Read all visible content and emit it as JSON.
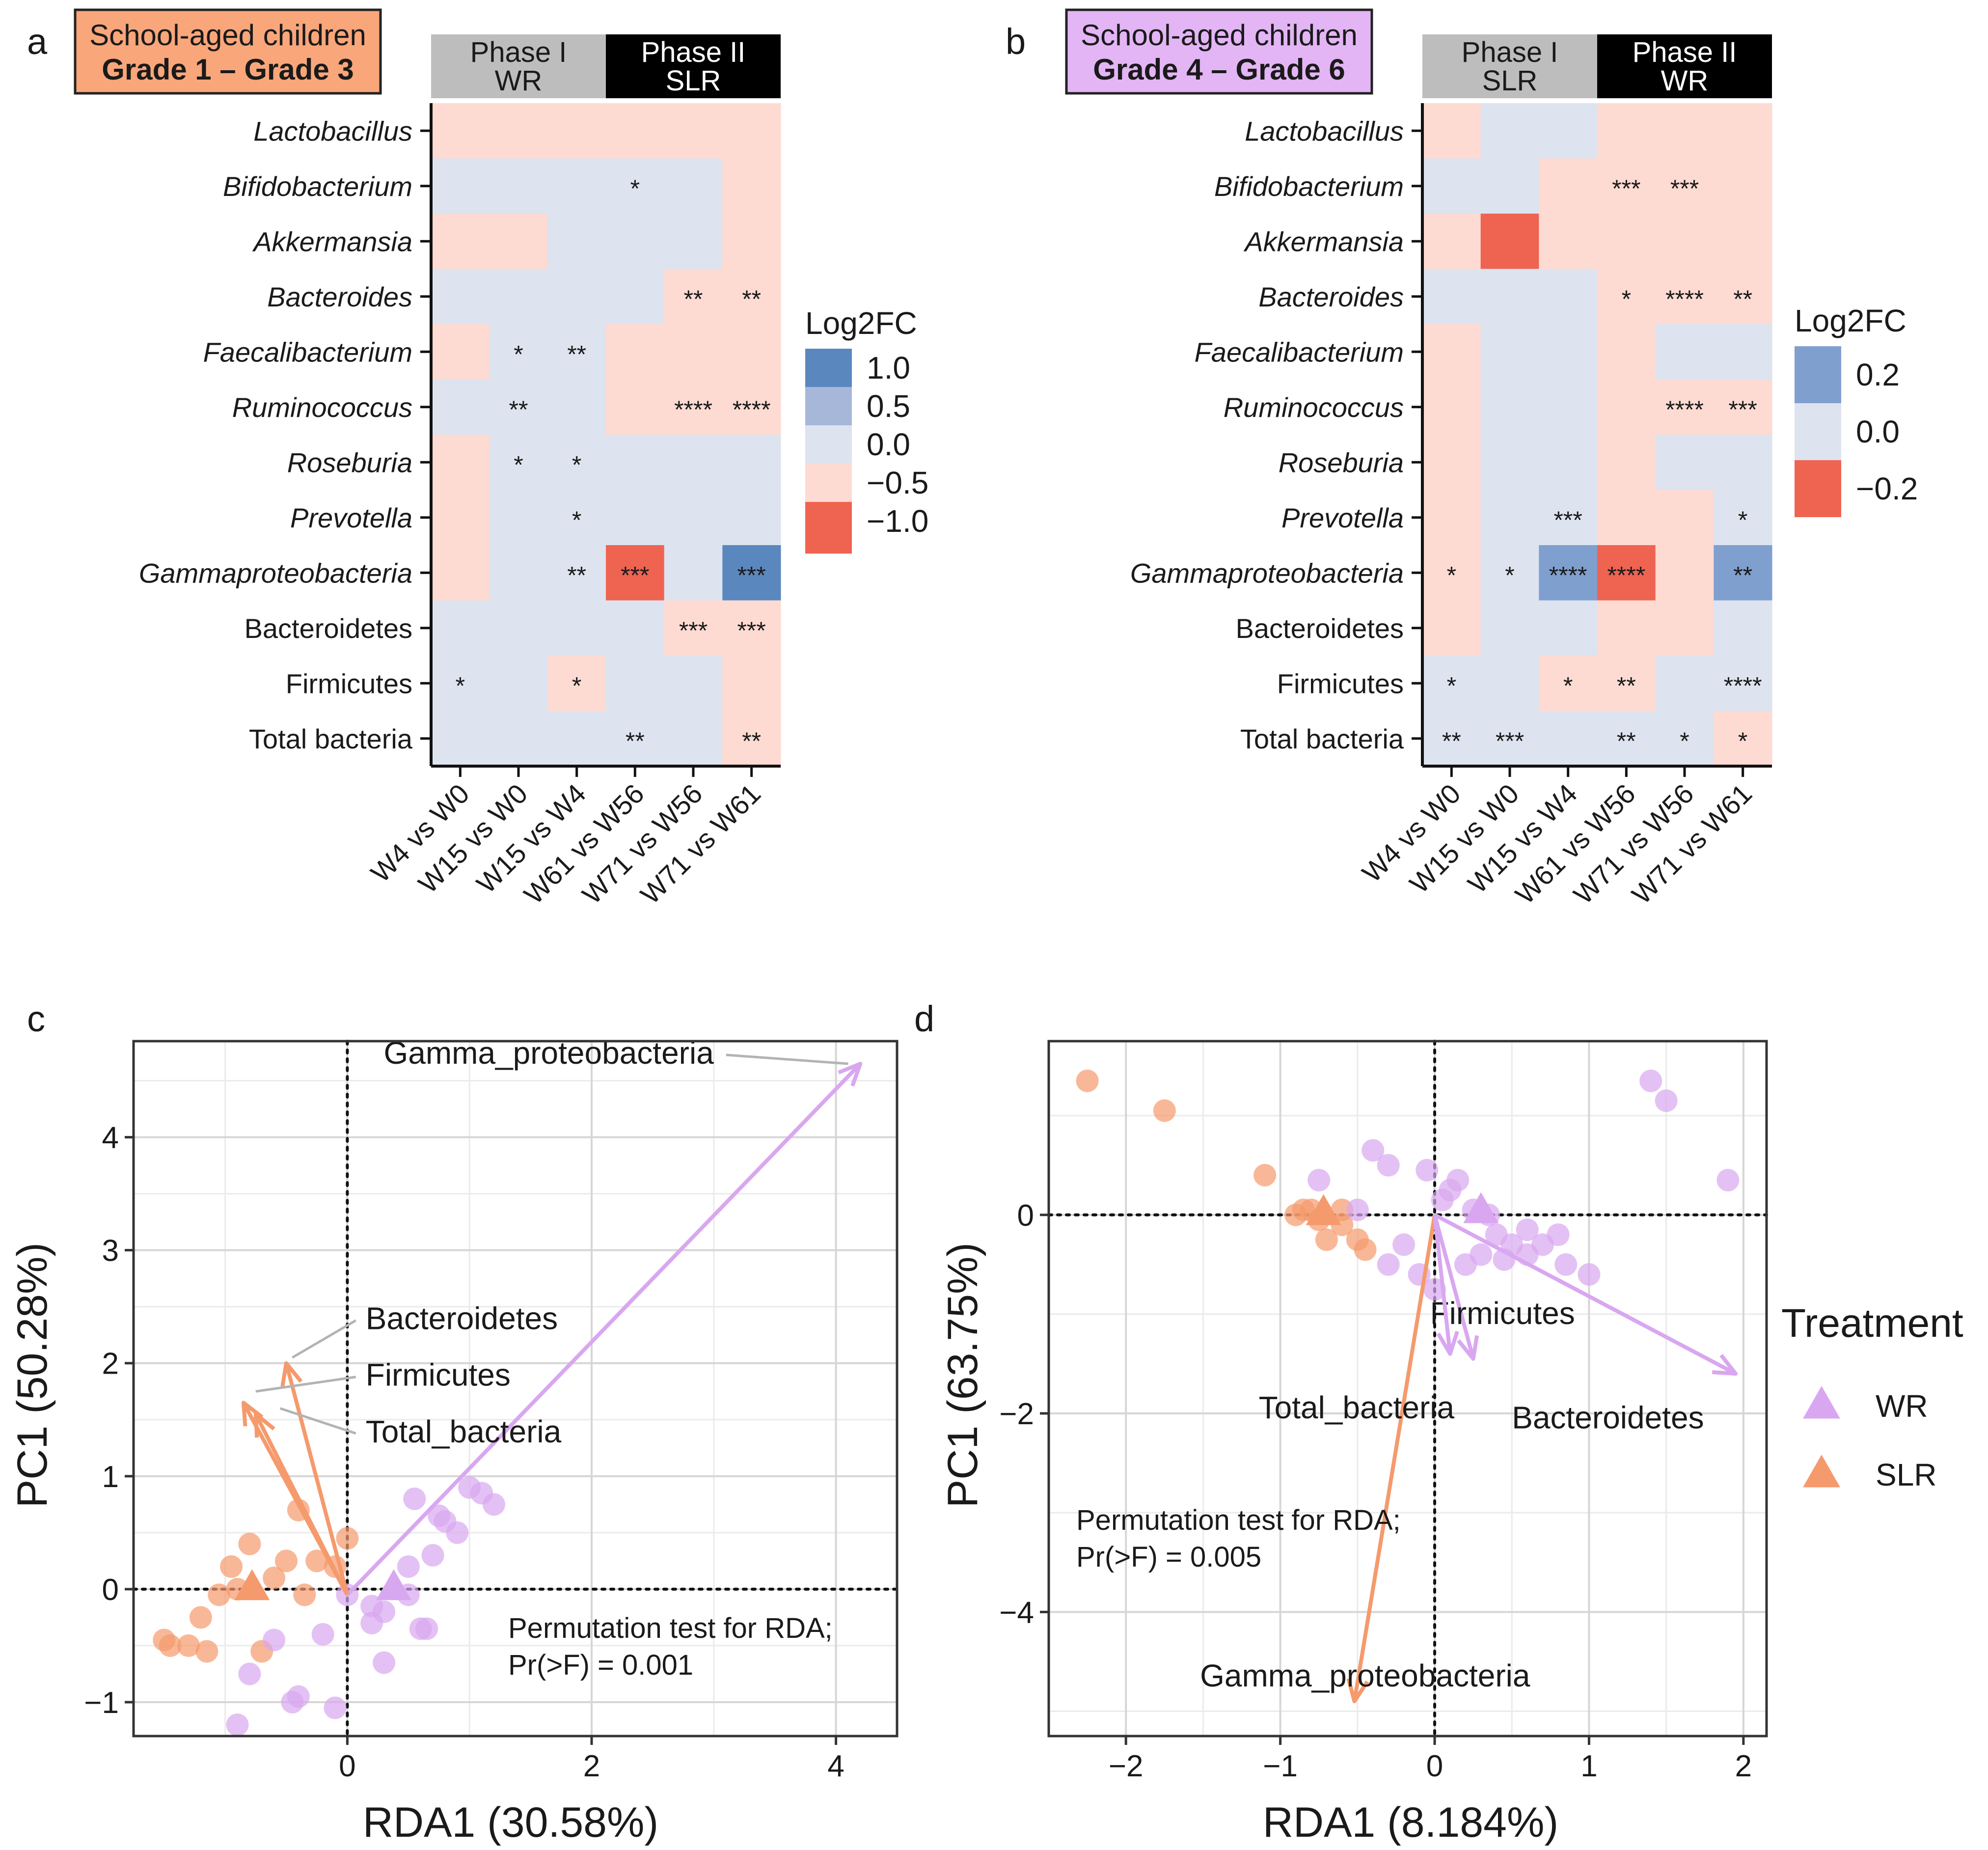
{
  "colors": {
    "wr": "#d9a7f0",
    "slr": "#f59a6c",
    "orange_box": "#f8a67a",
    "purple_box": "#e3b5f5",
    "phase_gray": "#bdbdbd",
    "phase_black": "#000000",
    "scale": [
      "#ef6351",
      "#f9a08f",
      "#fddbd3",
      "#dde3ef",
      "#a7b7d9",
      "#5b87bf"
    ]
  },
  "chart_data": [
    {
      "type": "heatmap",
      "panel": "a",
      "tag_line1": "School-aged children",
      "tag_line2": "Grade 1 – Grade 3",
      "phases": [
        {
          "label1": "Phase I",
          "label2": "WR",
          "cols": 3,
          "style": "gray"
        },
        {
          "label1": "Phase II",
          "label2": "SLR",
          "cols": 3,
          "style": "black"
        }
      ],
      "rows": [
        {
          "label": "Lactobacillus",
          "italic": true
        },
        {
          "label": "Bifidobacterium",
          "italic": true
        },
        {
          "label": "Akkermansia",
          "italic": true
        },
        {
          "label": "Bacteroides",
          "italic": true
        },
        {
          "label": "Faecalibacterium",
          "italic": true
        },
        {
          "label": "Ruminococcus",
          "italic": true
        },
        {
          "label": "Roseburia",
          "italic": true
        },
        {
          "label": "Prevotella",
          "italic": true
        },
        {
          "label": "Gammaproteobacteria",
          "italic": true
        },
        {
          "label": "Bacteroidetes",
          "italic": false
        },
        {
          "label": "Firmicutes",
          "italic": false
        },
        {
          "label": "Total bacteria",
          "italic": false
        }
      ],
      "columns": [
        "W4 vs W0",
        "W15 vs W0",
        "W15 vs W4",
        "W61 vs W56",
        "W71 vs W56",
        "W71 vs W61"
      ],
      "values": [
        [
          -0.3,
          -0.3,
          -0.3,
          -0.3,
          -0.3,
          -0.3
        ],
        [
          0.1,
          0.1,
          0.1,
          0.1,
          0.1,
          -0.3
        ],
        [
          -0.3,
          -0.3,
          0.1,
          0.1,
          0.1,
          -0.3
        ],
        [
          0.1,
          0.1,
          0.1,
          0.1,
          -0.3,
          -0.3
        ],
        [
          -0.3,
          0.1,
          0.1,
          -0.3,
          -0.3,
          -0.3
        ],
        [
          0.1,
          0.1,
          0.1,
          -0.3,
          -0.3,
          -0.3
        ],
        [
          -0.3,
          0.1,
          0.1,
          0.1,
          0.1,
          0.1
        ],
        [
          -0.3,
          0.1,
          0.1,
          0.1,
          0.1,
          0.1
        ],
        [
          -0.3,
          0.1,
          0.1,
          -1.2,
          0.1,
          1.2
        ],
        [
          0.1,
          0.1,
          0.1,
          0.1,
          -0.3,
          -0.3
        ],
        [
          0.1,
          0.1,
          -0.3,
          0.1,
          0.1,
          -0.3
        ],
        [
          0.1,
          0.1,
          0.1,
          0.1,
          0.1,
          -0.3
        ]
      ],
      "stars": [
        [
          "",
          "",
          "",
          "",
          "",
          ""
        ],
        [
          "",
          "",
          "",
          "*",
          "",
          ""
        ],
        [
          "",
          "",
          "",
          "",
          "",
          ""
        ],
        [
          "",
          "",
          "",
          "",
          "**",
          "**"
        ],
        [
          "",
          "*",
          "**",
          "",
          "",
          ""
        ],
        [
          "",
          "**",
          "",
          "",
          "****",
          "****"
        ],
        [
          "",
          "*",
          "*",
          "",
          "",
          ""
        ],
        [
          "",
          "",
          "*",
          "",
          "",
          ""
        ],
        [
          "",
          "",
          "**",
          "***",
          "",
          "***"
        ],
        [
          "",
          "",
          "",
          "",
          "***",
          "***"
        ],
        [
          "*",
          "",
          "*",
          "",
          "",
          ""
        ],
        [
          "",
          "",
          "",
          "**",
          "",
          "**"
        ]
      ],
      "legend": {
        "title": "Log2FC",
        "labels": [
          "1.0",
          "0.5",
          "0.0",
          "−0.5",
          "−1.0"
        ],
        "levels": [
          1.0,
          0.5,
          0.0,
          -0.5,
          -1.0
        ]
      }
    },
    {
      "type": "heatmap",
      "panel": "b",
      "tag_line1": "School-aged children",
      "tag_line2": "Grade 4 – Grade 6",
      "phases": [
        {
          "label1": "Phase I",
          "label2": "SLR",
          "cols": 3,
          "style": "gray"
        },
        {
          "label1": "Phase II",
          "label2": "WR",
          "cols": 3,
          "style": "black"
        }
      ],
      "rows": [
        {
          "label": "Lactobacillus",
          "italic": true
        },
        {
          "label": "Bifidobacterium",
          "italic": true
        },
        {
          "label": "Akkermansia",
          "italic": true
        },
        {
          "label": "Bacteroides",
          "italic": true
        },
        {
          "label": "Faecalibacterium",
          "italic": true
        },
        {
          "label": "Ruminococcus",
          "italic": true
        },
        {
          "label": "Roseburia",
          "italic": true
        },
        {
          "label": "Prevotella",
          "italic": true
        },
        {
          "label": "Gammaproteobacteria",
          "italic": true
        },
        {
          "label": "Bacteroidetes",
          "italic": false
        },
        {
          "label": "Firmicutes",
          "italic": false
        },
        {
          "label": "Total bacteria",
          "italic": false
        }
      ],
      "columns": [
        "W4 vs W0",
        "W15 vs W0",
        "W15 vs W4",
        "W61 vs W56",
        "W71 vs W56",
        "W71 vs W61"
      ],
      "values": [
        [
          -0.1,
          0.05,
          0.05,
          -0.1,
          -0.1,
          -0.1
        ],
        [
          0.05,
          0.05,
          -0.1,
          -0.1,
          -0.1,
          -0.1
        ],
        [
          -0.1,
          -0.3,
          -0.1,
          -0.1,
          -0.1,
          -0.1
        ],
        [
          0.05,
          0.05,
          0.05,
          -0.1,
          -0.1,
          -0.1
        ],
        [
          -0.1,
          0.05,
          0.05,
          -0.1,
          0.05,
          0.05
        ],
        [
          -0.1,
          0.05,
          0.05,
          -0.1,
          -0.1,
          -0.1
        ],
        [
          -0.1,
          0.05,
          0.05,
          -0.1,
          0.05,
          0.05
        ],
        [
          -0.1,
          0.05,
          0.05,
          -0.1,
          -0.1,
          0.05
        ],
        [
          -0.1,
          0.05,
          0.25,
          -0.3,
          -0.1,
          0.25
        ],
        [
          -0.1,
          0.05,
          0.05,
          -0.1,
          -0.1,
          0.05
        ],
        [
          0.05,
          0.05,
          -0.1,
          -0.1,
          0.05,
          0.05
        ],
        [
          0.05,
          0.05,
          0.05,
          0.05,
          0.05,
          -0.1
        ]
      ],
      "stars": [
        [
          "",
          "",
          "",
          "",
          "",
          ""
        ],
        [
          "",
          "",
          "",
          "***",
          "***",
          ""
        ],
        [
          "",
          "",
          "",
          "",
          "",
          ""
        ],
        [
          "",
          "",
          "",
          "*",
          "****",
          "**"
        ],
        [
          "",
          "",
          "",
          "",
          "",
          ""
        ],
        [
          "",
          "",
          "",
          "",
          "****",
          "***"
        ],
        [
          "",
          "",
          "",
          "",
          "",
          ""
        ],
        [
          "",
          "",
          "***",
          "",
          "",
          "*"
        ],
        [
          "*",
          "*",
          "****",
          "****",
          "",
          "**"
        ],
        [
          "",
          "",
          "",
          "",
          "",
          ""
        ],
        [
          "*",
          "",
          "*",
          "**",
          "",
          "****"
        ],
        [
          "**",
          "***",
          "",
          "**",
          "*",
          "*"
        ]
      ],
      "legend": {
        "title": "Log2FC",
        "labels": [
          "0.2",
          "0.0",
          "−0.2"
        ],
        "levels": [
          0.2,
          0.0,
          -0.2
        ]
      }
    },
    {
      "type": "scatter",
      "panel": "c",
      "xlabel": "RDA1 (30.58%)",
      "ylabel": "PC1 (50.28%)",
      "xlim": [
        -1.75,
        4.5
      ],
      "ylim": [
        -1.3,
        4.85
      ],
      "xticks": [
        0,
        2,
        4
      ],
      "xticklabels": [
        "0",
        "2",
        "4"
      ],
      "yticks": [
        -1,
        0,
        1,
        2,
        3,
        4
      ],
      "yticklabels": [
        "−1",
        "0",
        "1",
        "2",
        "3",
        "4"
      ],
      "annotation_line1": "Permutation test for RDA;",
      "annotation_line2": "Pr(>F) = 0.001",
      "wr_points": [
        [
          0.0,
          -0.05
        ],
        [
          0.2,
          -0.15
        ],
        [
          0.5,
          -0.05
        ],
        [
          0.7,
          0.3
        ],
        [
          0.9,
          0.5
        ],
        [
          1.0,
          0.9
        ],
        [
          1.1,
          0.85
        ],
        [
          1.2,
          0.75
        ],
        [
          0.8,
          0.6
        ],
        [
          0.5,
          0.2
        ],
        [
          0.3,
          -0.2
        ],
        [
          0.6,
          -0.35
        ],
        [
          0.2,
          -0.3
        ],
        [
          -0.2,
          -0.4
        ],
        [
          -0.6,
          -0.45
        ],
        [
          -0.8,
          -0.75
        ],
        [
          -0.4,
          -0.95
        ],
        [
          -0.9,
          -1.2
        ],
        [
          -0.1,
          -1.05
        ],
        [
          0.3,
          -0.65
        ],
        [
          0.65,
          -0.35
        ],
        [
          -0.45,
          -1.0
        ],
        [
          0.55,
          0.8
        ],
        [
          0.75,
          0.65
        ]
      ],
      "slr_points": [
        [
          -1.5,
          -0.45
        ],
        [
          -1.45,
          -0.5
        ],
        [
          -1.3,
          -0.5
        ],
        [
          -1.2,
          -0.25
        ],
        [
          -1.05,
          -0.05
        ],
        [
          -0.9,
          0.0
        ],
        [
          -0.8,
          0.4
        ],
        [
          -0.6,
          0.1
        ],
        [
          -0.4,
          0.7
        ],
        [
          -0.35,
          -0.05
        ],
        [
          -0.25,
          0.25
        ],
        [
          -0.1,
          0.2
        ],
        [
          0.0,
          0.45
        ],
        [
          -0.5,
          0.25
        ],
        [
          -1.15,
          -0.55
        ],
        [
          -0.7,
          -0.55
        ],
        [
          -0.95,
          0.2
        ]
      ],
      "wr_centroid": [
        0.38,
        0.02
      ],
      "slr_centroid": [
        -0.78,
        0.02
      ],
      "arrows": [
        {
          "label": "Gamma_proteobacteria",
          "color": "wr",
          "from": [
            0.0,
            -0.05
          ],
          "to": [
            4.2,
            4.65
          ],
          "text_at": [
            3.0,
            4.65
          ],
          "text_anchor": "end",
          "leader_to": [
            4.1,
            4.65
          ]
        },
        {
          "label": "Bacteroidetes",
          "color": "slr",
          "from": [
            0.0,
            -0.05
          ],
          "to": [
            -0.5,
            2.0
          ],
          "text_at": [
            0.15,
            2.3
          ],
          "text_anchor": "start",
          "leader_to": [
            -0.45,
            2.05
          ]
        },
        {
          "label": "Firmicutes",
          "color": "slr",
          "from": [
            0.0,
            -0.05
          ],
          "to": [
            -0.85,
            1.65
          ],
          "text_at": [
            0.15,
            1.8
          ],
          "text_anchor": "start",
          "leader_to": [
            -0.75,
            1.75
          ]
        },
        {
          "label": "Total_bacteria",
          "color": "slr",
          "from": [
            0.0,
            -0.05
          ],
          "to": [
            -0.75,
            1.55
          ],
          "text_at": [
            0.15,
            1.3
          ],
          "text_anchor": "start",
          "leader_to": [
            -0.55,
            1.6
          ]
        }
      ]
    },
    {
      "type": "scatter",
      "panel": "d",
      "xlabel": "RDA1 (8.184%)",
      "ylabel": "PC1 (63.75%)",
      "xlim": [
        -2.5,
        2.15
      ],
      "ylim": [
        -5.25,
        1.75
      ],
      "xticks": [
        -2,
        -1,
        0,
        1,
        2
      ],
      "xticklabels": [
        "−2",
        "−1",
        "0",
        "1",
        "2"
      ],
      "yticks": [
        -4,
        -2,
        0
      ],
      "yticklabels": [
        "−4",
        "−2",
        "0"
      ],
      "annotation_line1": "Permutation test for RDA;",
      "annotation_line2": "Pr(>F) = 0.005",
      "wr_points": [
        [
          -0.4,
          0.65
        ],
        [
          -0.3,
          0.5
        ],
        [
          -0.05,
          0.45
        ],
        [
          0.05,
          0.15
        ],
        [
          0.15,
          0.35
        ],
        [
          0.25,
          0.05
        ],
        [
          0.35,
          0.0
        ],
        [
          0.4,
          -0.2
        ],
        [
          0.5,
          -0.3
        ],
        [
          0.6,
          -0.4
        ],
        [
          0.7,
          -0.3
        ],
        [
          0.8,
          -0.2
        ],
        [
          0.85,
          -0.5
        ],
        [
          1.0,
          -0.6
        ],
        [
          0.3,
          -0.4
        ],
        [
          0.2,
          -0.5
        ],
        [
          -0.2,
          -0.3
        ],
        [
          -0.3,
          -0.5
        ],
        [
          -0.1,
          -0.6
        ],
        [
          0.0,
          -0.75
        ],
        [
          0.1,
          0.25
        ],
        [
          -0.5,
          0.05
        ],
        [
          -0.75,
          0.35
        ],
        [
          1.4,
          1.35
        ],
        [
          1.5,
          1.15
        ],
        [
          1.9,
          0.35
        ],
        [
          0.6,
          -0.15
        ],
        [
          0.45,
          -0.45
        ]
      ],
      "slr_points": [
        [
          -2.25,
          1.35
        ],
        [
          -1.75,
          1.05
        ],
        [
          -1.1,
          0.4
        ],
        [
          -0.85,
          0.05
        ],
        [
          -0.75,
          -0.05
        ],
        [
          -0.7,
          -0.25
        ],
        [
          -0.6,
          -0.1
        ],
        [
          -0.5,
          -0.25
        ],
        [
          -0.45,
          -0.35
        ],
        [
          -0.6,
          0.05
        ],
        [
          -0.8,
          0.05
        ],
        [
          -0.9,
          0.0
        ]
      ],
      "wr_centroid": [
        0.3,
        0.05
      ],
      "slr_centroid": [
        -0.72,
        0.03
      ],
      "arrows": [
        {
          "label": "Gamma_proteobacteria",
          "color": "slr",
          "from": [
            0.0,
            0.0
          ],
          "to": [
            -0.52,
            -4.9
          ],
          "text_at": [
            -1.52,
            -4.75
          ],
          "text_anchor": "start",
          "leader_to": null
        },
        {
          "label": "Bacteroidetes",
          "color": "wr",
          "from": [
            0.0,
            0.0
          ],
          "to": [
            1.95,
            -1.6
          ],
          "text_at": [
            0.5,
            -2.15
          ],
          "text_anchor": "start",
          "leader_to": null
        },
        {
          "label": "Firmicutes",
          "color": "wr",
          "from": [
            0.0,
            0.0
          ],
          "to": [
            0.25,
            -1.45
          ],
          "text_at": [
            -0.03,
            -1.1
          ],
          "text_anchor": "start",
          "leader_to": null
        },
        {
          "label": "Total_bacteria",
          "color": "wr",
          "from": [
            0.0,
            0.0
          ],
          "to": [
            0.1,
            -1.4
          ],
          "text_at": [
            -1.14,
            -2.05
          ],
          "text_anchor": "start",
          "leader_to": null
        }
      ]
    }
  ],
  "treatment_legend": {
    "title": "Treatment",
    "items": [
      {
        "label": "WR",
        "color_key": "wr"
      },
      {
        "label": "SLR",
        "color_key": "slr"
      }
    ]
  }
}
